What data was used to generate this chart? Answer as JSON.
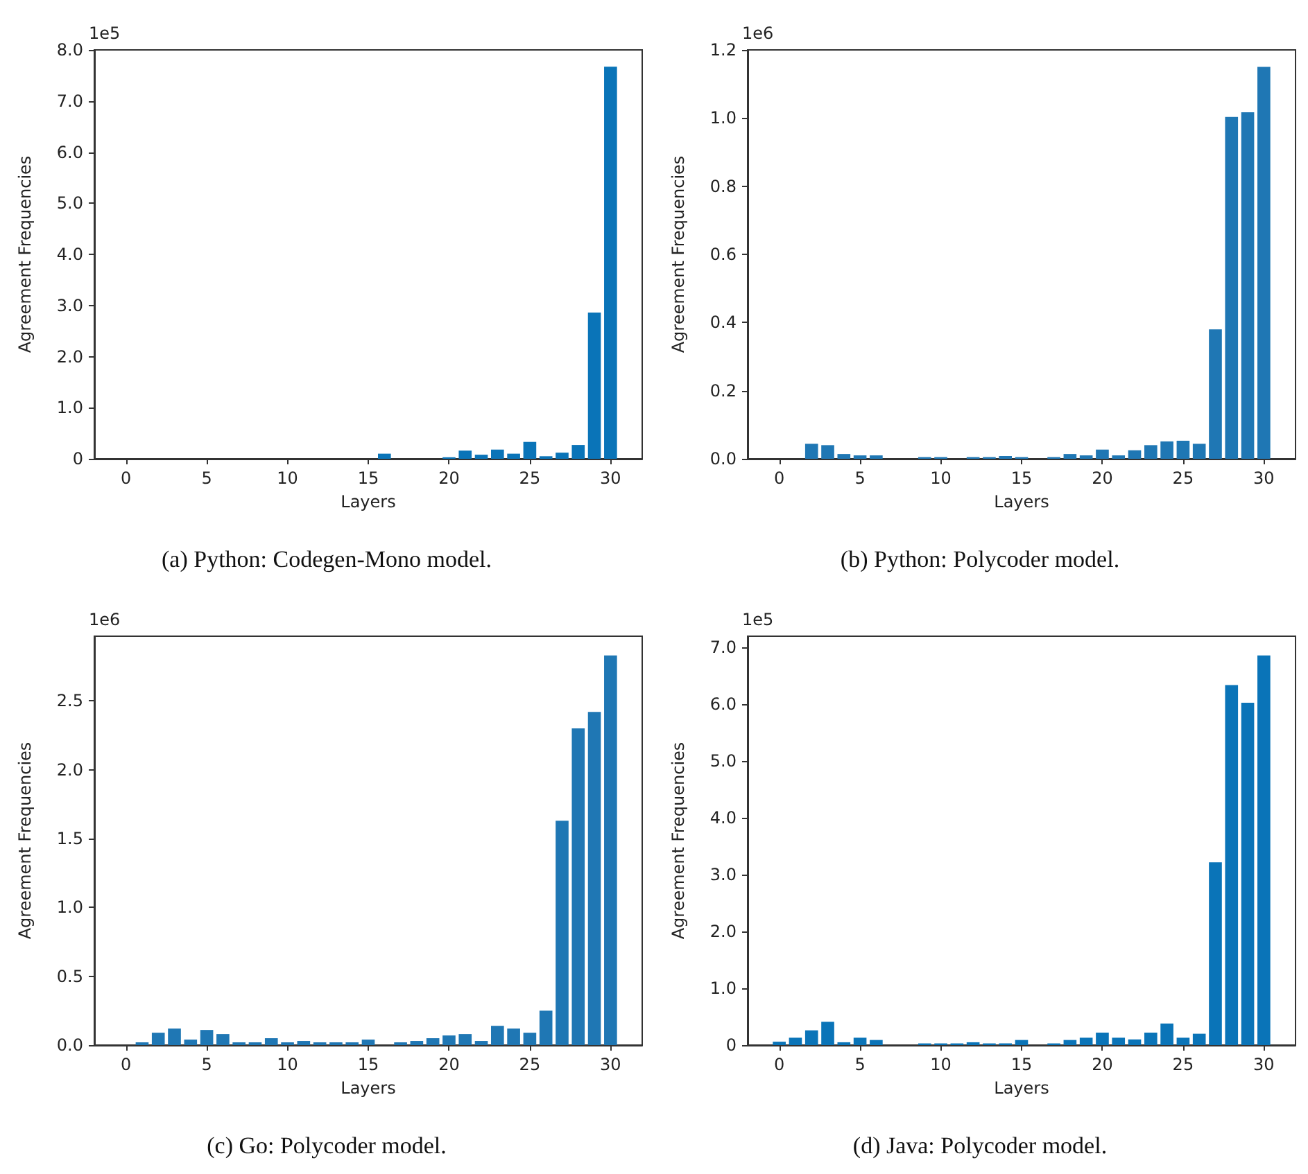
{
  "chart_data": [
    {
      "type": "bar",
      "title": "(a) Python: Codegen-Mono model.",
      "xlabel": "Layers",
      "ylabel": "Agreement Frequencies",
      "annotations": [
        "1e5"
      ],
      "color": "#0a74b8",
      "x": [
        16,
        20,
        21,
        22,
        23,
        24,
        25,
        26,
        27,
        28,
        29,
        30
      ],
      "values": [
        0.1,
        0.03,
        0.16,
        0.08,
        0.18,
        0.1,
        0.33,
        0.05,
        0.12,
        0.27,
        2.86,
        7.67
      ],
      "xlim": [
        -1.96,
        31.96
      ],
      "xticks": [
        0,
        5,
        10,
        15,
        20,
        25,
        30
      ],
      "ylim": [
        0,
        8
      ],
      "yticks": [
        0,
        {
          "value": 1,
          "label": "1.0"
        },
        {
          "value": 2,
          "label": "2.0"
        },
        {
          "value": 3,
          "label": "3.0"
        },
        {
          "value": 4,
          "label": "4.0"
        },
        {
          "value": 5,
          "label": "5.0"
        },
        {
          "value": 6,
          "label": "6.0"
        },
        {
          "value": 7,
          "label": "7.0"
        },
        {
          "value": 8,
          "label": "8.0"
        }
      ]
    },
    {
      "type": "bar",
      "title": "(b) Python: Polycoder model.",
      "xlabel": "Layers",
      "ylabel": "Agreement Frequencies",
      "annotations": [
        "1e6"
      ],
      "color": "#1f77b4",
      "x": [
        2,
        3,
        4,
        5,
        6,
        9,
        10,
        12,
        13,
        14,
        15,
        17,
        18,
        19,
        20,
        21,
        22,
        23,
        24,
        25,
        26,
        27,
        28,
        29,
        30
      ],
      "values": [
        0.044,
        0.04,
        0.014,
        0.01,
        0.01,
        0.005,
        0.005,
        0.005,
        0.005,
        0.008,
        0.005,
        0.005,
        0.014,
        0.01,
        0.027,
        0.01,
        0.025,
        0.04,
        0.051,
        0.053,
        0.044,
        0.38,
        1.003,
        1.017,
        1.15
      ],
      "xlim": [
        -1.96,
        31.96
      ],
      "xticks": [
        0,
        5,
        10,
        15,
        20,
        25,
        30
      ],
      "ylim": [
        0,
        1.2
      ],
      "yticks": [
        {
          "value": 0,
          "label": "0.0"
        },
        0.2,
        0.4,
        0.6,
        0.8,
        {
          "value": 1,
          "label": "1.0"
        },
        1.2
      ]
    },
    {
      "type": "bar",
      "title": "(c) Go: Polycoder model.",
      "xlabel": "Layers",
      "ylabel": "Agreement Frequencies",
      "annotations": [
        "1e6"
      ],
      "color": "#1f77b4",
      "x": [
        1,
        2,
        3,
        4,
        5,
        6,
        7,
        8,
        9,
        10,
        11,
        12,
        13,
        14,
        15,
        17,
        18,
        19,
        20,
        21,
        22,
        23,
        24,
        25,
        26,
        27,
        28,
        29,
        30
      ],
      "values": [
        0.02,
        0.09,
        0.12,
        0.04,
        0.11,
        0.08,
        0.02,
        0.02,
        0.05,
        0.02,
        0.03,
        0.02,
        0.02,
        0.02,
        0.04,
        0.02,
        0.03,
        0.05,
        0.07,
        0.08,
        0.03,
        0.14,
        0.12,
        0.09,
        0.25,
        1.63,
        2.3,
        2.42,
        2.83
      ],
      "xlim": [
        -1.96,
        31.96
      ],
      "xticks": [
        0,
        5,
        10,
        15,
        20,
        25,
        30
      ],
      "ylim": [
        0,
        2.97
      ],
      "yticks": [
        {
          "value": 0,
          "label": "0.0"
        },
        0.5,
        {
          "value": 1,
          "label": "1.0"
        },
        1.5,
        {
          "value": 2,
          "label": "2.0"
        },
        2.5
      ]
    },
    {
      "type": "bar",
      "title": "(d) Java: Polycoder model.",
      "xlabel": "Layers",
      "ylabel": "Agreement Frequencies",
      "annotations": [
        "1e5"
      ],
      "color": "#0a74b8",
      "x": [
        0,
        1,
        2,
        3,
        4,
        5,
        6,
        9,
        10,
        11,
        12,
        13,
        14,
        15,
        17,
        18,
        19,
        20,
        21,
        22,
        23,
        24,
        25,
        26,
        27,
        28,
        29,
        30
      ],
      "values": [
        0.06,
        0.13,
        0.26,
        0.41,
        0.05,
        0.13,
        0.09,
        0.03,
        0.03,
        0.03,
        0.05,
        0.03,
        0.03,
        0.09,
        0.03,
        0.09,
        0.13,
        0.22,
        0.13,
        0.1,
        0.22,
        0.38,
        0.13,
        0.2,
        3.22,
        6.34,
        6.03,
        6.86
      ],
      "xlim": [
        -1.96,
        31.96
      ],
      "xticks": [
        0,
        5,
        10,
        15,
        20,
        25,
        30
      ],
      "ylim": [
        0,
        7.2
      ],
      "yticks": [
        0,
        {
          "value": 1,
          "label": "1.0"
        },
        {
          "value": 2,
          "label": "2.0"
        },
        {
          "value": 3,
          "label": "3.0"
        },
        {
          "value": 4,
          "label": "4.0"
        },
        {
          "value": 5,
          "label": "5.0"
        },
        {
          "value": 6,
          "label": "6.0"
        },
        {
          "value": 7,
          "label": "7.0"
        }
      ]
    }
  ]
}
